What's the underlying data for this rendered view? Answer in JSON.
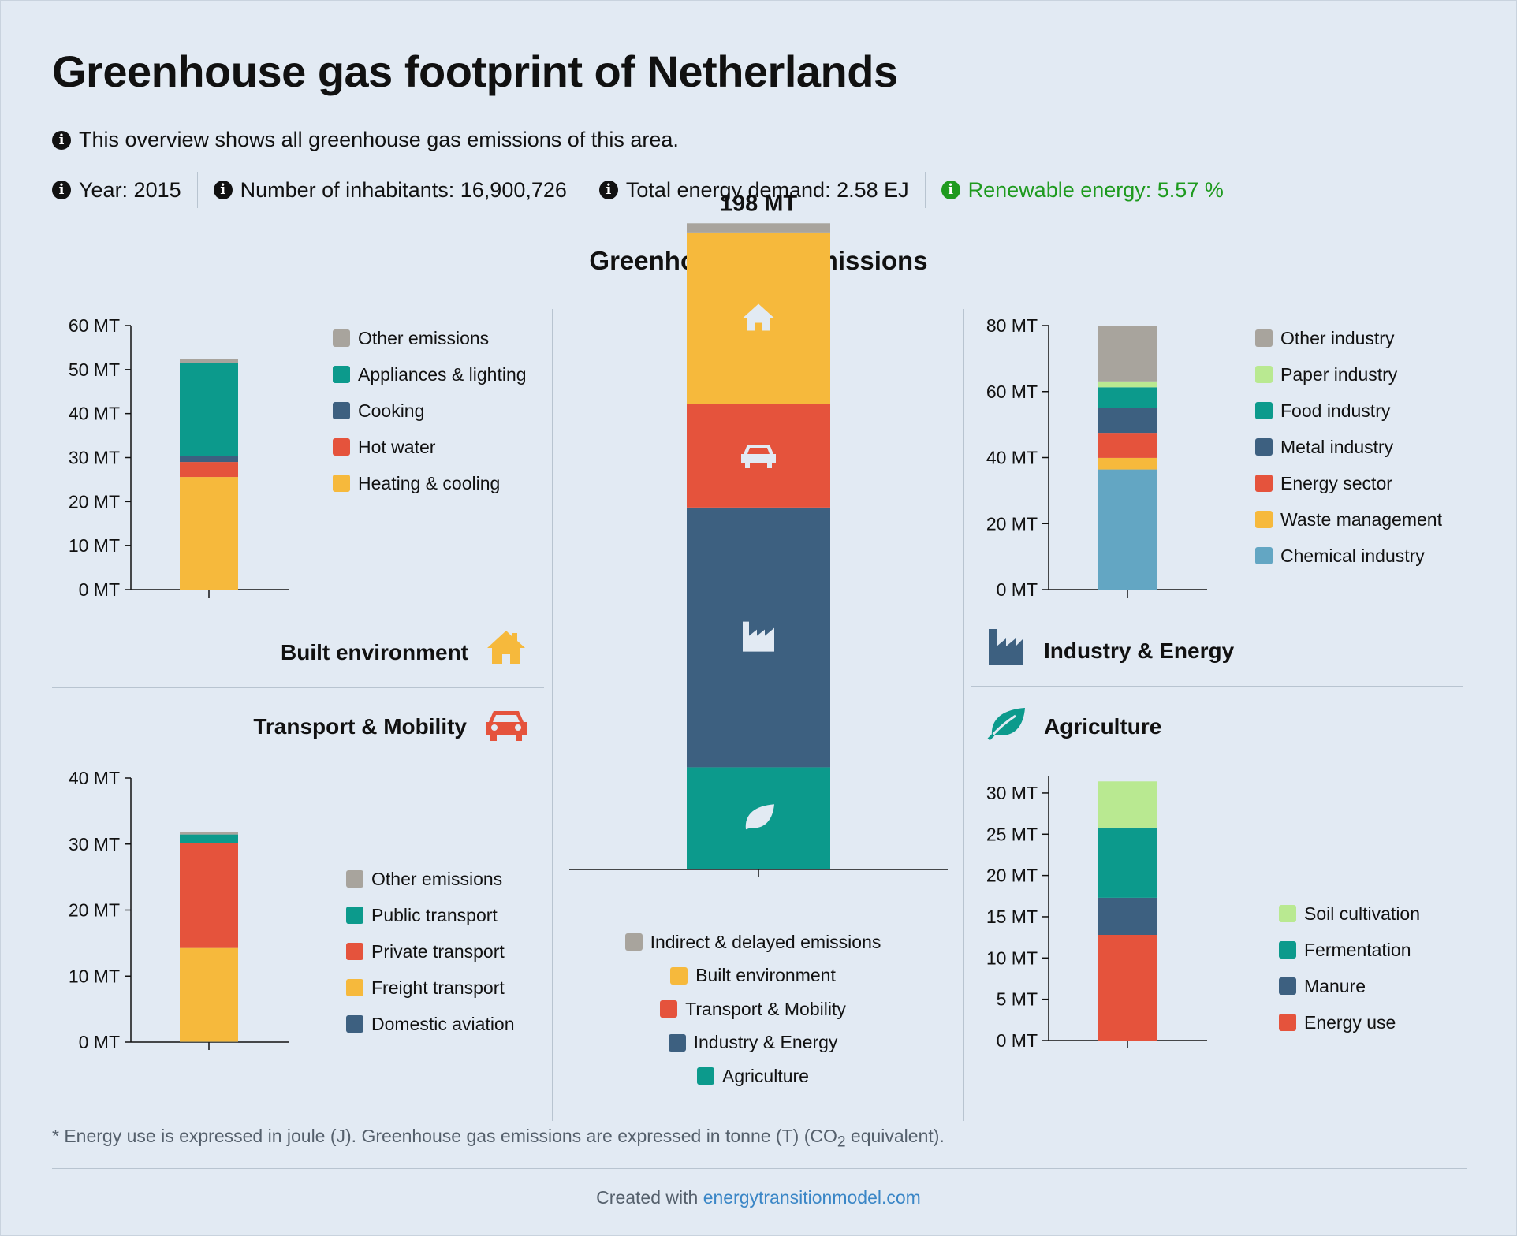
{
  "header": {
    "title": "Greenhouse gas footprint of Netherlands",
    "intro": "This overview shows all greenhouse gas emissions of this area.",
    "stats": {
      "year": "Year: 2015",
      "inhabitants": "Number of inhabitants: 16,900,726",
      "energy_demand": "Total energy demand: 2.58 EJ",
      "renewable": "Renewable energy: 5.57 %"
    }
  },
  "section_heading": "Greenhouse gas emissions",
  "colors": {
    "grey": "#a8a49d",
    "teal": "#0c9a8c",
    "navy": "#3d6080",
    "red": "#e5533c",
    "yellow": "#f6b93c",
    "lightblue": "#63a6c3",
    "lightgreen": "#b9e991"
  },
  "sectors": {
    "built": {
      "title": "Built environment",
      "icon": "house-icon"
    },
    "transport": {
      "title": "Transport & Mobility",
      "icon": "car-icon"
    },
    "industry": {
      "title": "Industry & Energy",
      "icon": "factory-icon"
    },
    "agriculture": {
      "title": "Agriculture",
      "icon": "leaf-icon"
    }
  },
  "chart_data": [
    {
      "id": "total",
      "type": "bar",
      "stacked": true,
      "total_label": "198 MT",
      "unit": "MT",
      "series": [
        {
          "name": "Agriculture",
          "value": 31.3,
          "color": "#0c9a8c",
          "icon": "leaf-icon"
        },
        {
          "name": "Industry & Energy",
          "value": 79.6,
          "color": "#3d6080",
          "icon": "factory-icon"
        },
        {
          "name": "Transport & Mobility",
          "value": 31.8,
          "color": "#e5533c",
          "icon": "car-icon"
        },
        {
          "name": "Built environment",
          "value": 52.5,
          "color": "#f6b93c",
          "icon": "house-icon"
        },
        {
          "name": "Indirect & delayed emissions",
          "value": 2.8,
          "color": "#a8a49d"
        }
      ],
      "legend": [
        {
          "label": "Indirect & delayed emissions",
          "color": "#a8a49d"
        },
        {
          "label": "Built environment",
          "color": "#f6b93c"
        },
        {
          "label": "Transport & Mobility",
          "color": "#e5533c"
        },
        {
          "label": "Industry & Energy",
          "color": "#3d6080"
        },
        {
          "label": "Agriculture",
          "color": "#0c9a8c"
        }
      ]
    },
    {
      "id": "built",
      "type": "bar",
      "stacked": true,
      "ylim": [
        0,
        60
      ],
      "yticks": [
        0,
        10,
        20,
        30,
        40,
        50,
        60
      ],
      "tick_labels": [
        "0 MT",
        "10 MT",
        "20 MT",
        "30 MT",
        "40 MT",
        "50 MT",
        "60 MT"
      ],
      "series": [
        {
          "name": "Heating & cooling",
          "value": 25.6,
          "color": "#f6b93c"
        },
        {
          "name": "Hot water",
          "value": 3.4,
          "color": "#e5533c"
        },
        {
          "name": "Cooking",
          "value": 1.4,
          "color": "#3d6080"
        },
        {
          "name": "Appliances & lighting",
          "value": 21.1,
          "color": "#0c9a8c"
        },
        {
          "name": "Other emissions",
          "value": 0.9,
          "color": "#a8a49d"
        }
      ],
      "legend": [
        {
          "label": "Other emissions",
          "color": "#a8a49d"
        },
        {
          "label": "Appliances & lighting",
          "color": "#0c9a8c"
        },
        {
          "label": "Cooking",
          "color": "#3d6080"
        },
        {
          "label": "Hot water",
          "color": "#e5533c"
        },
        {
          "label": "Heating & cooling",
          "color": "#f6b93c"
        }
      ]
    },
    {
      "id": "transport",
      "type": "bar",
      "stacked": true,
      "ylim": [
        0,
        40
      ],
      "yticks": [
        0,
        10,
        20,
        30,
        40
      ],
      "tick_labels": [
        "0 MT",
        "10 MT",
        "20 MT",
        "30 MT",
        "40 MT"
      ],
      "series": [
        {
          "name": "Domestic aviation",
          "value": 0.05,
          "color": "#3d6080"
        },
        {
          "name": "Freight transport",
          "value": 14.2,
          "color": "#f6b93c"
        },
        {
          "name": "Private transport",
          "value": 15.9,
          "color": "#e5533c"
        },
        {
          "name": "Public transport",
          "value": 1.3,
          "color": "#0c9a8c"
        },
        {
          "name": "Other emissions",
          "value": 0.4,
          "color": "#a8a49d"
        }
      ],
      "legend": [
        {
          "label": "Other emissions",
          "color": "#a8a49d"
        },
        {
          "label": "Public transport",
          "color": "#0c9a8c"
        },
        {
          "label": "Private transport",
          "color": "#e5533c"
        },
        {
          "label": "Freight transport",
          "color": "#f6b93c"
        },
        {
          "label": "Domestic aviation",
          "color": "#3d6080"
        }
      ]
    },
    {
      "id": "industry",
      "type": "bar",
      "stacked": true,
      "ylim": [
        0,
        80
      ],
      "yticks": [
        0,
        20,
        40,
        60,
        80
      ],
      "tick_labels": [
        "0 MT",
        "20 MT",
        "40 MT",
        "60 MT",
        "80 MT"
      ],
      "series": [
        {
          "name": "Chemical industry",
          "value": 36.4,
          "color": "#63a6c3"
        },
        {
          "name": "Waste management",
          "value": 3.5,
          "color": "#f6b93c"
        },
        {
          "name": "Energy sector",
          "value": 7.6,
          "color": "#e5533c"
        },
        {
          "name": "Metal industry",
          "value": 7.6,
          "color": "#3d6080"
        },
        {
          "name": "Food industry",
          "value": 6.2,
          "color": "#0c9a8c"
        },
        {
          "name": "Paper industry",
          "value": 1.8,
          "color": "#b9e991"
        },
        {
          "name": "Other industry",
          "value": 16.9,
          "color": "#a8a49d"
        }
      ],
      "legend": [
        {
          "label": "Other industry",
          "color": "#a8a49d"
        },
        {
          "label": "Paper industry",
          "color": "#b9e991"
        },
        {
          "label": "Food industry",
          "color": "#0c9a8c"
        },
        {
          "label": "Metal industry",
          "color": "#3d6080"
        },
        {
          "label": "Energy sector",
          "color": "#e5533c"
        },
        {
          "label": "Waste management",
          "color": "#f6b93c"
        },
        {
          "label": "Chemical industry",
          "color": "#63a6c3"
        }
      ]
    },
    {
      "id": "agriculture",
      "type": "bar",
      "stacked": true,
      "ylim": [
        0,
        32
      ],
      "yticks": [
        0,
        5,
        10,
        15,
        20,
        25,
        30
      ],
      "tick_labels": [
        "0 MT",
        "5 MT",
        "10 MT",
        "15 MT",
        "20 MT",
        "25 MT",
        "30 MT"
      ],
      "series": [
        {
          "name": "Energy use",
          "value": 12.8,
          "color": "#e5533c"
        },
        {
          "name": "Manure",
          "value": 4.5,
          "color": "#3d6080"
        },
        {
          "name": "Fermentation",
          "value": 8.5,
          "color": "#0c9a8c"
        },
        {
          "name": "Soil cultivation",
          "value": 5.6,
          "color": "#b9e991"
        }
      ],
      "legend": [
        {
          "label": "Soil cultivation",
          "color": "#b9e991"
        },
        {
          "label": "Fermentation",
          "color": "#0c9a8c"
        },
        {
          "label": "Manure",
          "color": "#3d6080"
        },
        {
          "label": "Energy use",
          "color": "#e5533c"
        }
      ]
    }
  ],
  "footnote": {
    "before": "* Energy use is expressed in joule (J). Greenhouse gas emissions are expressed in tonne (T) (CO",
    "sub": "2",
    "after": " equivalent)."
  },
  "credit": {
    "prefix": "Created with ",
    "link": "energytransitionmodel.com"
  }
}
